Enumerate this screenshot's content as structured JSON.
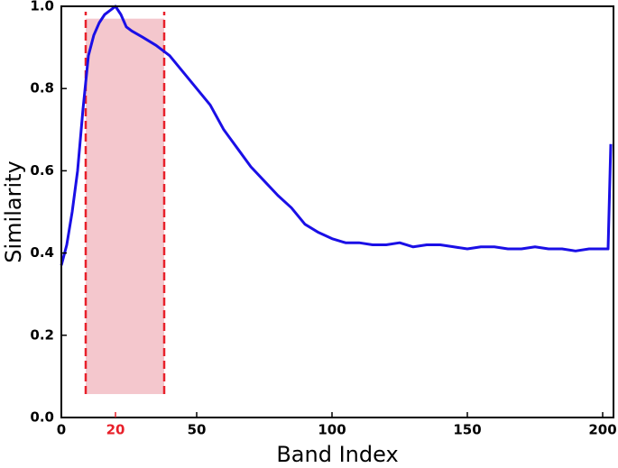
{
  "chart_data": {
    "type": "line",
    "xlabel": "Band Index",
    "ylabel": "Similarity",
    "x": [
      0,
      2,
      4,
      6,
      8,
      10,
      12,
      14,
      16,
      18,
      20,
      22,
      24,
      26,
      30,
      35,
      40,
      45,
      50,
      55,
      60,
      65,
      70,
      75,
      80,
      85,
      90,
      95,
      100,
      105,
      110,
      115,
      120,
      125,
      130,
      135,
      140,
      145,
      150,
      155,
      160,
      165,
      170,
      175,
      180,
      185,
      190,
      195,
      200,
      202,
      203
    ],
    "series": [
      {
        "name": "Similarity",
        "color": "#1a0fe6",
        "values": [
          0.37,
          0.42,
          0.5,
          0.6,
          0.75,
          0.88,
          0.93,
          0.96,
          0.98,
          0.99,
          1.0,
          0.98,
          0.95,
          0.94,
          0.925,
          0.905,
          0.88,
          0.84,
          0.8,
          0.76,
          0.7,
          0.655,
          0.61,
          0.575,
          0.54,
          0.51,
          0.47,
          0.45,
          0.435,
          0.425,
          0.425,
          0.42,
          0.42,
          0.425,
          0.415,
          0.42,
          0.42,
          0.415,
          0.41,
          0.415,
          0.415,
          0.41,
          0.41,
          0.415,
          0.41,
          0.41,
          0.405,
          0.41,
          0.41,
          0.41,
          0.665
        ]
      }
    ],
    "span": {
      "x": [
        9,
        38
      ],
      "y": [
        0.057,
        0.97
      ],
      "color": "#f4c7cd",
      "edge_color": "#e8202a"
    },
    "xlim": [
      0,
      204
    ],
    "ylim": [
      0,
      1
    ],
    "xticks": [
      0,
      20,
      50,
      100,
      150,
      200
    ],
    "highlight_xtick": 20,
    "highlight_color": "#e8202a",
    "yticks": [
      {
        "value": 0,
        "label": "0.0"
      },
      {
        "value": 0.2,
        "label": "0.2"
      },
      {
        "value": 0.4,
        "label": "0.4"
      },
      {
        "value": 0.6,
        "label": "0.6"
      },
      {
        "value": 0.8,
        "label": "0.8"
      },
      {
        "value": 1,
        "label": "1.0"
      }
    ]
  }
}
